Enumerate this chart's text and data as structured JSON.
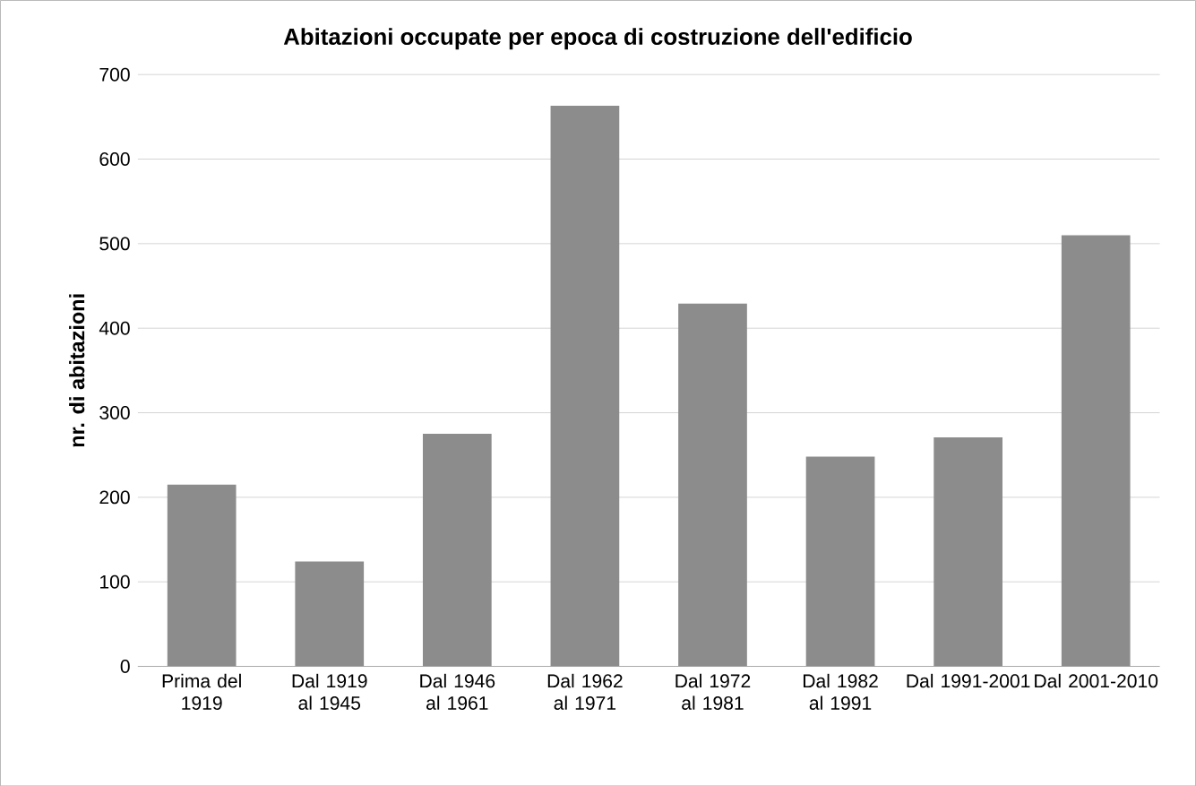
{
  "chart_data": {
    "type": "bar",
    "title": "Abitazioni occupate per epoca di costruzione dell'edificio",
    "ylabel": "nr. di abitazioni",
    "categories": [
      "Prima del 1919",
      "Dal 1919 al 1945",
      "Dal 1946 al 1961",
      "Dal 1962 al 1971",
      "Dal 1972 al 1981",
      "Dal 1982 al 1991",
      "Dal 1991-2001",
      "Dal 2001-2010"
    ],
    "values": [
      215,
      124,
      275,
      663,
      429,
      248,
      271,
      510
    ],
    "color": "#8c8c8c",
    "ylim": [
      0,
      700
    ],
    "yticks": [
      0,
      100,
      200,
      300,
      400,
      500,
      600,
      700
    ],
    "grid": "y"
  }
}
